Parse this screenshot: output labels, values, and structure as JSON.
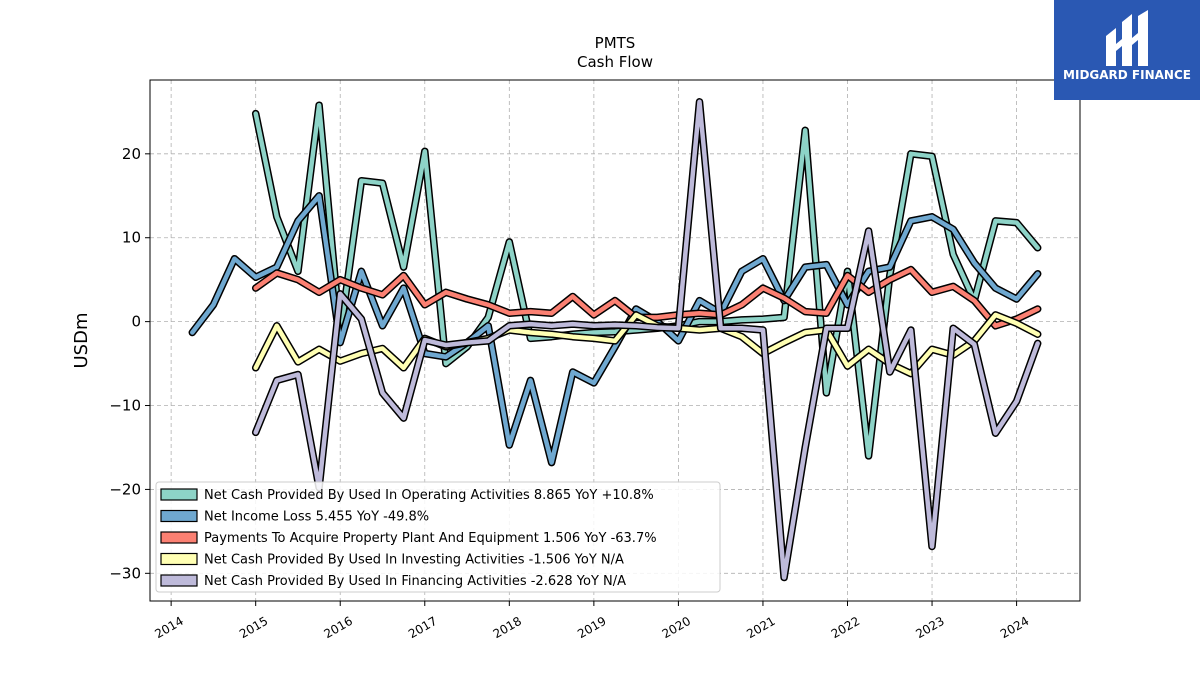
{
  "chart_data": {
    "type": "line",
    "title": "PMTS",
    "subtitle": "Cash Flow",
    "xlabel": "",
    "ylabel": "USDm",
    "xlim": [
      2013.75,
      2024.75
    ],
    "ylim": [
      -33.3,
      28.8
    ],
    "x_ticks": [
      "2014",
      "2015",
      "2016",
      "2017",
      "2018",
      "2019",
      "2020",
      "2021",
      "2022",
      "2023",
      "2024"
    ],
    "y_ticks": [
      20,
      10,
      0,
      -10,
      -20,
      -30
    ],
    "y_tick_labels": [
      "20",
      "10",
      "0",
      "−10",
      "−20",
      "−30"
    ],
    "grid": true,
    "legend_position": "lower-left",
    "series": [
      {
        "name": "Net Cash Provided By Used In Operating Activities  8.865 YoY +10.8%",
        "color": "#8dd3c7",
        "points": [
          [
            2015.0,
            24.8
          ],
          [
            2015.25,
            12.5
          ],
          [
            2015.5,
            6.0
          ],
          [
            2015.75,
            25.8
          ],
          [
            2016.0,
            -1.5
          ],
          [
            2016.25,
            16.8
          ],
          [
            2016.5,
            16.5
          ],
          [
            2016.75,
            6.5
          ],
          [
            2017.0,
            20.3
          ],
          [
            2017.25,
            -5.0
          ],
          [
            2017.5,
            -3.0
          ],
          [
            2017.75,
            0.5
          ],
          [
            2018.0,
            9.5
          ],
          [
            2018.25,
            -2.0
          ],
          [
            2018.5,
            -1.8
          ],
          [
            2018.75,
            -1.5
          ],
          [
            2019.0,
            -1.3
          ],
          [
            2019.25,
            -1.2
          ],
          [
            2019.5,
            -1.0
          ],
          [
            2019.75,
            -0.8
          ],
          [
            2020.0,
            -0.5
          ],
          [
            2020.25,
            0.0
          ],
          [
            2020.5,
            0.0
          ],
          [
            2020.75,
            0.2
          ],
          [
            2021.0,
            0.3
          ],
          [
            2021.25,
            0.5
          ],
          [
            2021.5,
            22.8
          ],
          [
            2021.75,
            -8.5
          ],
          [
            2022.0,
            6.0
          ],
          [
            2022.25,
            -16.0
          ],
          [
            2022.5,
            5.5
          ],
          [
            2022.75,
            20.0
          ],
          [
            2023.0,
            19.7
          ],
          [
            2023.25,
            8.0
          ],
          [
            2023.5,
            2.5
          ],
          [
            2023.75,
            12.0
          ],
          [
            2024.0,
            11.8
          ],
          [
            2024.25,
            8.8
          ]
        ]
      },
      {
        "name": "Net Income Loss  5.455 YoY -49.8%",
        "color": "#6fa8d0",
        "points": [
          [
            2014.25,
            -1.3
          ],
          [
            2014.5,
            2.0
          ],
          [
            2014.75,
            7.5
          ],
          [
            2015.0,
            5.3
          ],
          [
            2015.25,
            6.5
          ],
          [
            2015.5,
            12.0
          ],
          [
            2015.75,
            15.0
          ],
          [
            2016.0,
            -2.5
          ],
          [
            2016.25,
            6.0
          ],
          [
            2016.5,
            -0.5
          ],
          [
            2016.75,
            4.0
          ],
          [
            2017.0,
            -3.8
          ],
          [
            2017.25,
            -4.2
          ],
          [
            2017.5,
            -2.5
          ],
          [
            2017.75,
            -0.5
          ],
          [
            2018.0,
            -14.7
          ],
          [
            2018.25,
            -7.0
          ],
          [
            2018.5,
            -16.8
          ],
          [
            2018.75,
            -6.0
          ],
          [
            2019.0,
            -7.3
          ],
          [
            2019.25,
            -3.0
          ],
          [
            2019.5,
            1.5
          ],
          [
            2019.75,
            0.0
          ],
          [
            2020.0,
            -2.3
          ],
          [
            2020.25,
            2.5
          ],
          [
            2020.5,
            1.0
          ],
          [
            2020.75,
            6.0
          ],
          [
            2021.0,
            7.5
          ],
          [
            2021.25,
            2.5
          ],
          [
            2021.5,
            6.5
          ],
          [
            2021.75,
            6.8
          ],
          [
            2022.0,
            2.0
          ],
          [
            2022.25,
            6.0
          ],
          [
            2022.5,
            6.5
          ],
          [
            2022.75,
            12.0
          ],
          [
            2023.0,
            12.5
          ],
          [
            2023.25,
            11.0
          ],
          [
            2023.5,
            7.0
          ],
          [
            2023.75,
            4.0
          ],
          [
            2024.0,
            2.7
          ],
          [
            2024.25,
            5.7
          ]
        ]
      },
      {
        "name": "Payments To Acquire Property Plant And Equipment  1.506 YoY -63.7%",
        "color": "#fb8072",
        "points": [
          [
            2015.0,
            4.0
          ],
          [
            2015.25,
            5.8
          ],
          [
            2015.5,
            5.0
          ],
          [
            2015.75,
            3.5
          ],
          [
            2016.0,
            5.0
          ],
          [
            2016.25,
            4.0
          ],
          [
            2016.5,
            3.2
          ],
          [
            2016.75,
            5.5
          ],
          [
            2017.0,
            2.0
          ],
          [
            2017.25,
            3.5
          ],
          [
            2017.5,
            2.7
          ],
          [
            2017.75,
            2.0
          ],
          [
            2018.0,
            1.0
          ],
          [
            2018.25,
            1.2
          ],
          [
            2018.5,
            1.0
          ],
          [
            2018.75,
            3.0
          ],
          [
            2019.0,
            0.8
          ],
          [
            2019.25,
            2.5
          ],
          [
            2019.5,
            0.5
          ],
          [
            2019.75,
            0.5
          ],
          [
            2020.0,
            0.8
          ],
          [
            2020.25,
            1.0
          ],
          [
            2020.5,
            0.8
          ],
          [
            2020.75,
            2.0
          ],
          [
            2021.0,
            4.0
          ],
          [
            2021.25,
            2.8
          ],
          [
            2021.5,
            1.2
          ],
          [
            2021.75,
            1.0
          ],
          [
            2022.0,
            5.5
          ],
          [
            2022.25,
            3.5
          ],
          [
            2022.5,
            5.0
          ],
          [
            2022.75,
            6.2
          ],
          [
            2023.0,
            3.5
          ],
          [
            2023.25,
            4.2
          ],
          [
            2023.5,
            2.5
          ],
          [
            2023.75,
            -0.5
          ],
          [
            2024.0,
            0.3
          ],
          [
            2024.25,
            1.5
          ]
        ]
      },
      {
        "name": "Net Cash Provided By Used In Investing Activities  -1.506 YoY N/A",
        "color": "#ffffb3",
        "points": [
          [
            2015.0,
            -5.5
          ],
          [
            2015.25,
            -0.5
          ],
          [
            2015.5,
            -4.8
          ],
          [
            2015.75,
            -3.3
          ],
          [
            2016.0,
            -4.7
          ],
          [
            2016.25,
            -3.8
          ],
          [
            2016.5,
            -3.2
          ],
          [
            2016.75,
            -5.5
          ],
          [
            2017.0,
            -2.0
          ],
          [
            2017.25,
            -3.0
          ],
          [
            2017.5,
            -2.5
          ],
          [
            2017.75,
            -2.0
          ],
          [
            2018.0,
            -1.0
          ],
          [
            2018.25,
            -1.3
          ],
          [
            2018.5,
            -1.5
          ],
          [
            2018.75,
            -1.8
          ],
          [
            2019.0,
            -2.0
          ],
          [
            2019.25,
            -2.3
          ],
          [
            2019.5,
            0.8
          ],
          [
            2019.75,
            -0.5
          ],
          [
            2020.0,
            -0.8
          ],
          [
            2020.25,
            -1.0
          ],
          [
            2020.5,
            -0.8
          ],
          [
            2020.75,
            -1.8
          ],
          [
            2021.0,
            -3.8
          ],
          [
            2021.25,
            -2.5
          ],
          [
            2021.5,
            -1.3
          ],
          [
            2021.75,
            -1.0
          ],
          [
            2022.0,
            -5.3
          ],
          [
            2022.25,
            -3.3
          ],
          [
            2022.5,
            -5.0
          ],
          [
            2022.75,
            -6.2
          ],
          [
            2023.0,
            -3.3
          ],
          [
            2023.25,
            -4.0
          ],
          [
            2023.5,
            -2.3
          ],
          [
            2023.75,
            0.8
          ],
          [
            2024.0,
            -0.2
          ],
          [
            2024.25,
            -1.5
          ]
        ]
      },
      {
        "name": "Net Cash Provided By Used In Financing Activities  -2.628 YoY N/A",
        "color": "#bebada",
        "points": [
          [
            2015.0,
            -13.2
          ],
          [
            2015.25,
            -7.0
          ],
          [
            2015.5,
            -6.3
          ],
          [
            2015.75,
            -19.8
          ],
          [
            2016.0,
            3.3
          ],
          [
            2016.25,
            0.3
          ],
          [
            2016.5,
            -8.5
          ],
          [
            2016.75,
            -11.5
          ],
          [
            2017.0,
            -2.2
          ],
          [
            2017.25,
            -2.8
          ],
          [
            2017.5,
            -2.5
          ],
          [
            2017.75,
            -2.3
          ],
          [
            2018.0,
            -0.5
          ],
          [
            2018.25,
            -0.3
          ],
          [
            2018.5,
            -0.5
          ],
          [
            2018.75,
            -0.3
          ],
          [
            2019.0,
            -0.5
          ],
          [
            2019.25,
            -0.4
          ],
          [
            2019.5,
            -0.5
          ],
          [
            2019.75,
            -0.7
          ],
          [
            2020.0,
            -0.8
          ],
          [
            2020.25,
            26.2
          ],
          [
            2020.5,
            -0.8
          ],
          [
            2020.75,
            -0.8
          ],
          [
            2021.0,
            -1.0
          ],
          [
            2021.25,
            -30.5
          ],
          [
            2021.5,
            -15.0
          ],
          [
            2021.75,
            -0.8
          ],
          [
            2022.0,
            -0.8
          ],
          [
            2022.25,
            10.8
          ],
          [
            2022.5,
            -6.0
          ],
          [
            2022.75,
            -1.0
          ],
          [
            2023.0,
            -26.8
          ],
          [
            2023.25,
            -0.8
          ],
          [
            2023.5,
            -2.7
          ],
          [
            2023.75,
            -13.3
          ],
          [
            2024.0,
            -9.5
          ],
          [
            2024.25,
            -2.6
          ]
        ]
      }
    ]
  },
  "logo": {
    "text": "MIDGARD FINANCE"
  }
}
